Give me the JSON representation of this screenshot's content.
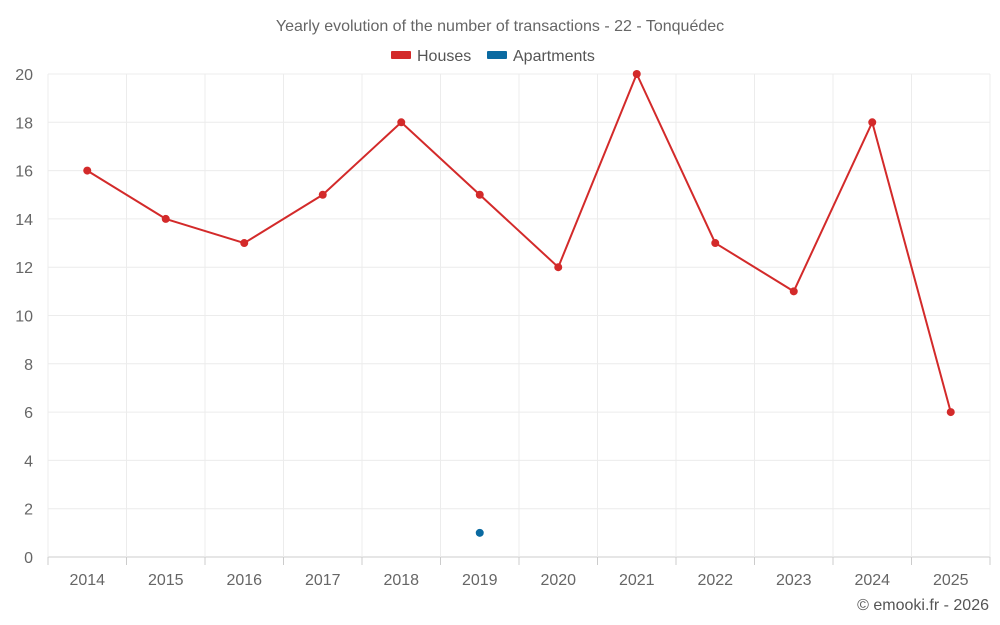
{
  "chart_data": {
    "type": "line",
    "title": "Yearly evolution of the number of transactions - 22 - Tonquédec",
    "xlabel": "",
    "ylabel": "",
    "categories": [
      "2014",
      "2015",
      "2016",
      "2017",
      "2018",
      "2019",
      "2020",
      "2021",
      "2022",
      "2023",
      "2024",
      "2025"
    ],
    "ylim": [
      0,
      20
    ],
    "yticks": [
      0,
      2,
      4,
      6,
      8,
      10,
      12,
      14,
      16,
      18,
      20
    ],
    "grid": true,
    "legend_position": "top-center",
    "series": [
      {
        "name": "Houses",
        "color": "#d32a2a",
        "values": [
          16,
          14,
          13,
          15,
          18,
          15,
          12,
          20,
          13,
          11,
          18,
          6
        ]
      },
      {
        "name": "Apartments",
        "color": "#0a6aa1",
        "values": [
          null,
          null,
          null,
          null,
          null,
          1,
          null,
          null,
          null,
          null,
          null,
          null
        ]
      }
    ]
  },
  "credit": "© emooki.fr - 2026"
}
